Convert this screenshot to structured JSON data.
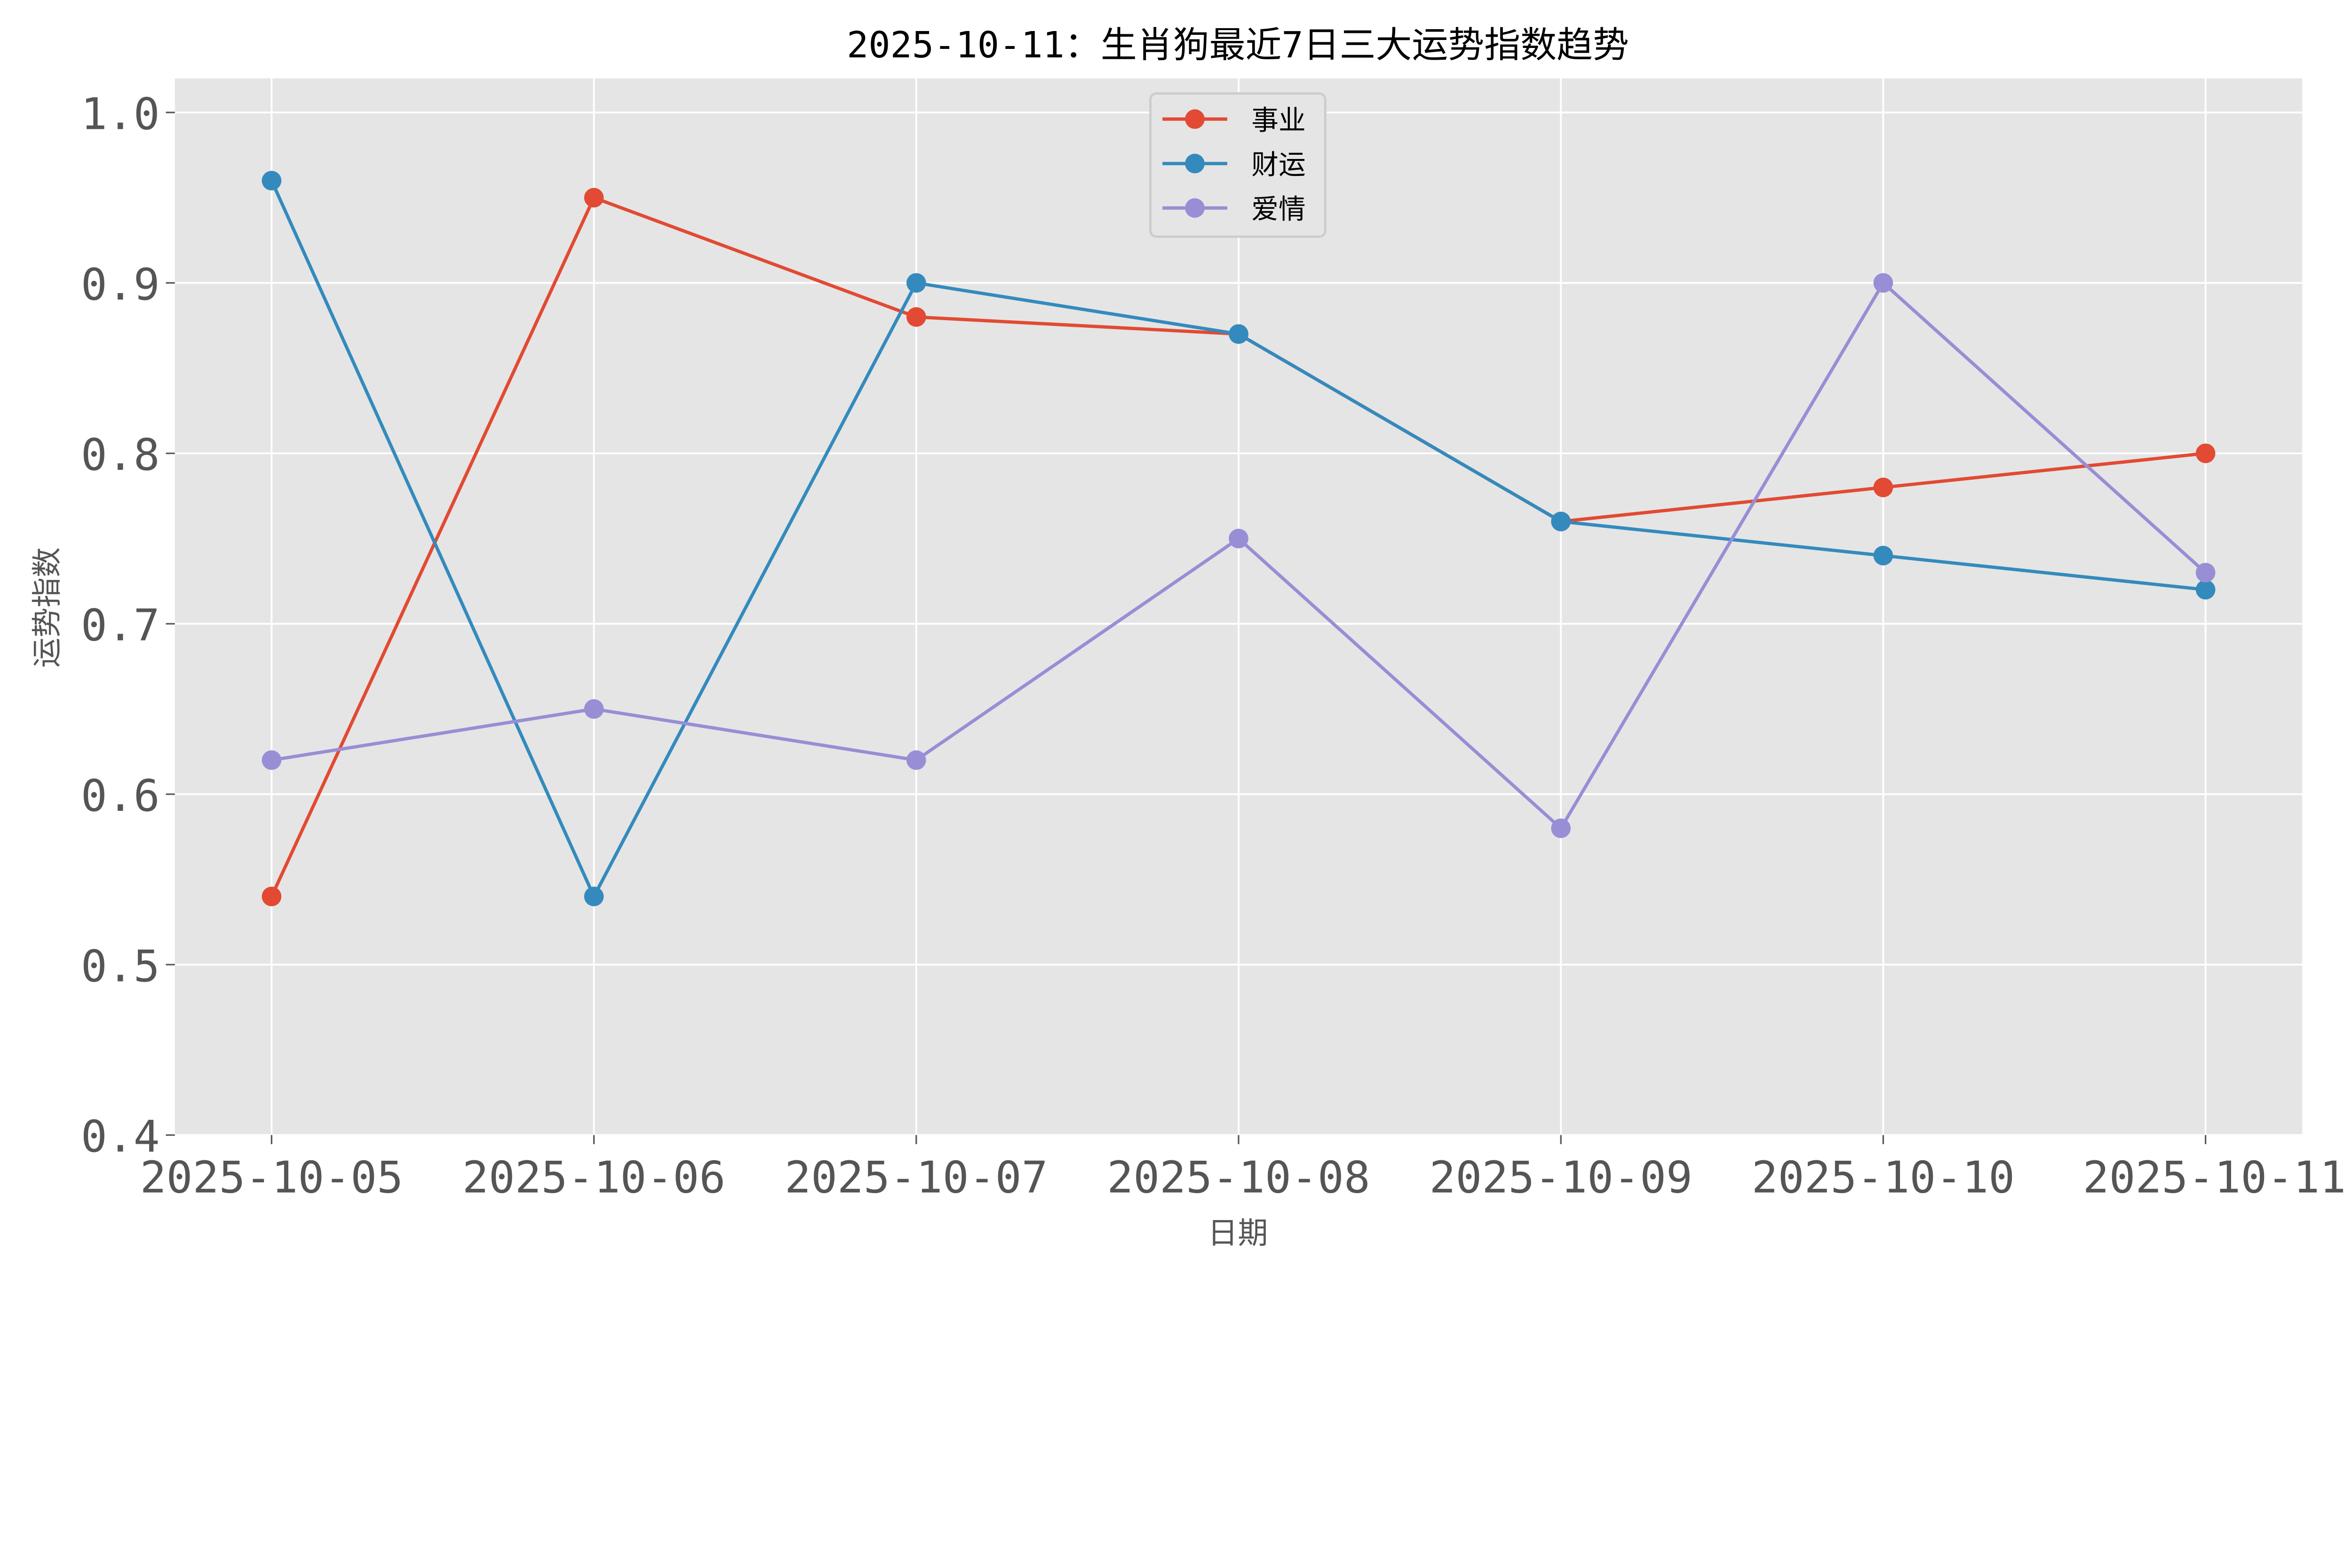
{
  "chart_data": {
    "type": "line",
    "title": "2025-10-11：生肖狗最近7日三大运势指数趋势",
    "xlabel": "日期",
    "ylabel": "运势指数",
    "categories": [
      "2025-10-05",
      "2025-10-06",
      "2025-10-07",
      "2025-10-08",
      "2025-10-09",
      "2025-10-10",
      "2025-10-11"
    ],
    "ylim": [
      0.4,
      1.02
    ],
    "yticks": [
      "0.4",
      "0.5",
      "0.6",
      "0.7",
      "0.8",
      "0.9",
      "1.0"
    ],
    "grid": true,
    "legend_position": "top-center",
    "background": "#E5E5E5",
    "series": [
      {
        "name": "事业",
        "color": "#E24A33",
        "values": [
          0.54,
          0.95,
          0.88,
          0.87,
          0.76,
          0.78,
          0.8
        ]
      },
      {
        "name": "财运",
        "color": "#348ABD",
        "values": [
          0.96,
          0.54,
          0.9,
          0.87,
          0.76,
          0.74,
          0.72
        ]
      },
      {
        "name": "爱情",
        "color": "#988ED5",
        "values": [
          0.62,
          0.65,
          0.62,
          0.75,
          0.58,
          0.9,
          0.73
        ]
      }
    ]
  }
}
